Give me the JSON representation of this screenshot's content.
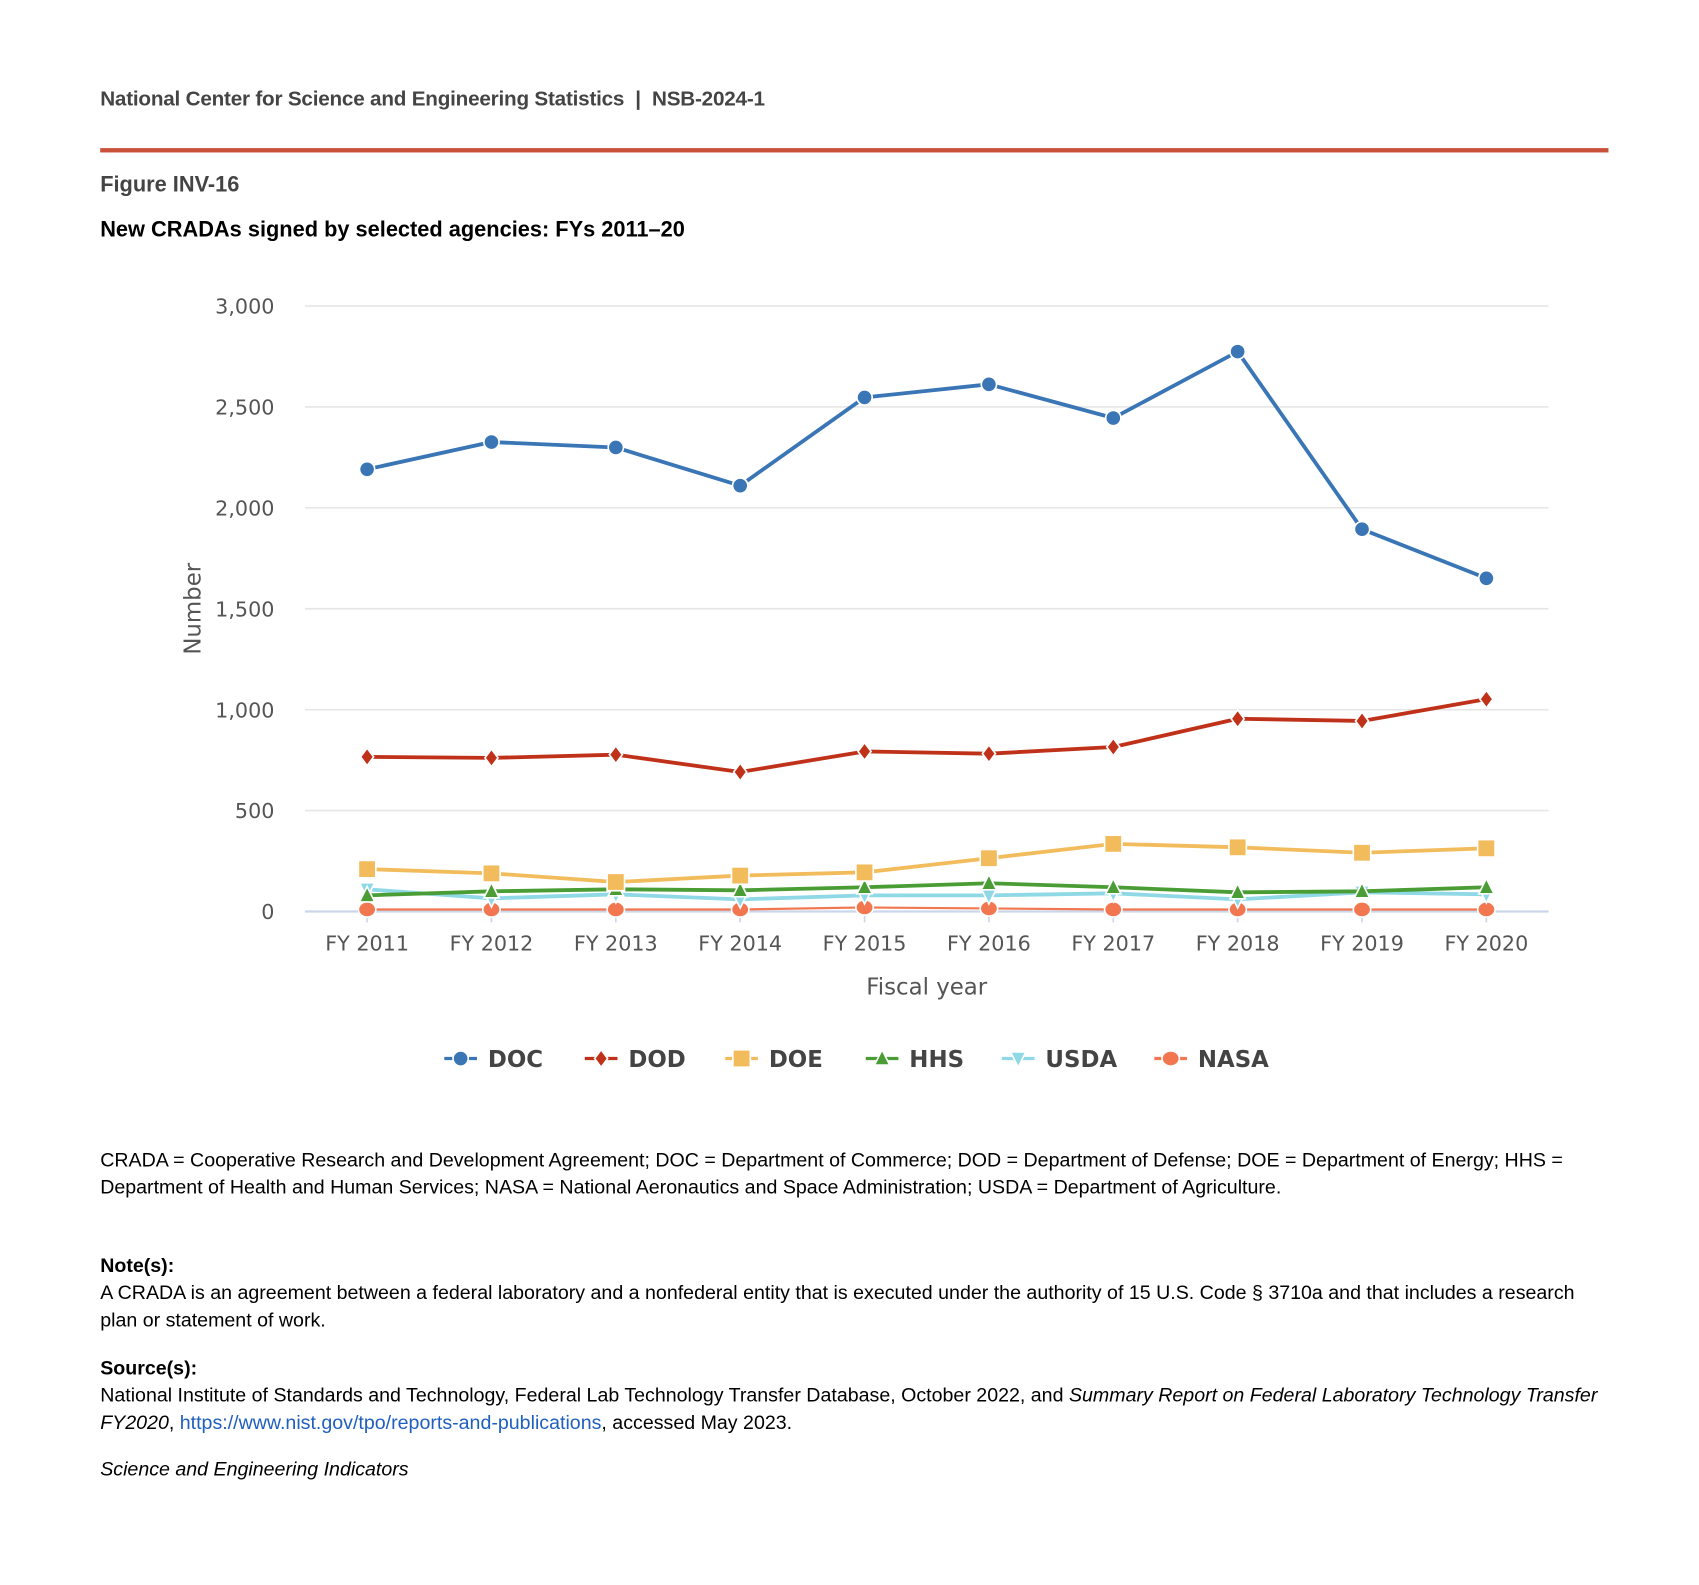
{
  "header": {
    "org": "National Center for Science and Engineering Statistics",
    "sep": "|",
    "report": "NSB-2024-1"
  },
  "figure": {
    "label": "Figure INV-16",
    "title": "New CRADAs signed by selected agencies: FYs 2011–20"
  },
  "chart_data": {
    "type": "line",
    "title": "New CRADAs signed by selected agencies: FYs 2011–20",
    "xlabel": "Fiscal year",
    "ylabel": "Number",
    "ylim": [
      0,
      3000
    ],
    "yticks": [
      0,
      500,
      1000,
      1500,
      2000,
      2500,
      3000
    ],
    "ytick_labels": [
      "0",
      "500",
      "1,000",
      "1,500",
      "2,000",
      "2,500",
      "3,000"
    ],
    "categories": [
      "FY 2011",
      "FY 2012",
      "FY 2013",
      "FY 2014",
      "FY 2015",
      "FY 2016",
      "FY 2017",
      "FY 2018",
      "FY 2019",
      "FY 2020"
    ],
    "grid": true,
    "legend_position": "bottom",
    "series": [
      {
        "name": "DOC",
        "color": "#3a75b5",
        "marker": "circle",
        "values": [
          2191,
          2326,
          2299,
          2110,
          2547,
          2612,
          2445,
          2774,
          1894,
          1651
        ]
      },
      {
        "name": "DOD",
        "color": "#c0311a",
        "marker": "diamond",
        "values": [
          766,
          761,
          777,
          691,
          793,
          782,
          815,
          955,
          944,
          1052
        ]
      },
      {
        "name": "DOE",
        "color": "#f2bc5d",
        "marker": "square",
        "values": [
          210,
          189,
          146,
          178,
          194,
          264,
          335,
          318,
          291,
          313
        ]
      },
      {
        "name": "HHS",
        "color": "#4a9d35",
        "marker": "triangle",
        "values": [
          80,
          100,
          110,
          105,
          120,
          140,
          120,
          95,
          100,
          120
        ]
      },
      {
        "name": "USDA",
        "color": "#8fd8e6",
        "marker": "triangle-down",
        "values": [
          110,
          65,
          85,
          60,
          80,
          80,
          90,
          60,
          95,
          85
        ]
      },
      {
        "name": "NASA",
        "color": "#f2764f",
        "marker": "ellipse",
        "values": [
          10,
          10,
          10,
          10,
          20,
          15,
          10,
          10,
          10,
          10
        ]
      }
    ]
  },
  "footnotes": {
    "abbrev": "CRADA = Cooperative Research and Development Agreement; DOC = Department of Commerce; DOD = Department of Defense; DOE = Department of Energy; HHS = Department of Health and Human Services; NASA = National Aeronautics and Space Administration; USDA = Department of Agriculture.",
    "notes_label": "Note(s):",
    "notes": "A CRADA is an agreement between a federal laboratory and a nonfederal entity that is executed under the authority of 15 U.S. Code § 3710a and that includes a research plan or statement of work.",
    "source_label": "Source(s):",
    "source_pre": "National Institute of Standards and Technology, Federal Lab Technology Transfer Database, October 2022, and ",
    "source_italic": "Summary Report on Federal Laboratory Technology Transfer FY2020",
    "source_comma": ", ",
    "source_link": "https://www.nist.gov/tpo/reports-and-publications",
    "source_post": ", accessed May 2023.",
    "publication": "Science and Engineering Indicators"
  }
}
